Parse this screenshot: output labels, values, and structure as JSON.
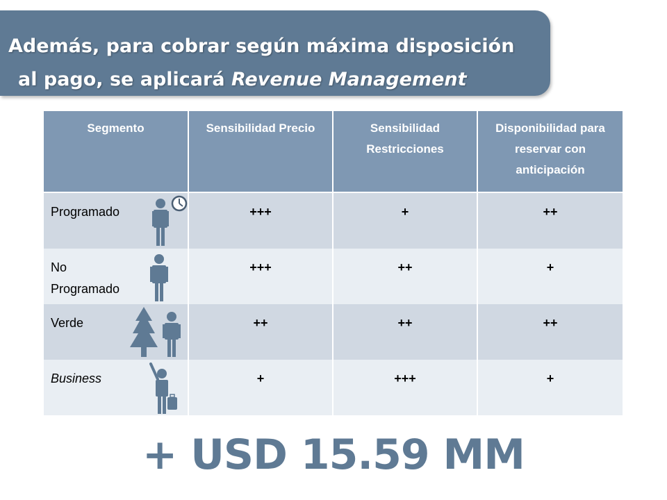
{
  "banner": {
    "line1": "Además, para cobrar según máxima disposición",
    "line2_prefix": "al pago, se aplicará ",
    "line2_emphasis": "Revenue Management"
  },
  "table": {
    "headers": [
      "Segmento",
      "Sensibilidad Precio",
      "Sensibilidad Restricciones",
      "Disponibilidad para reservar con anticipación"
    ],
    "rows": [
      {
        "segment": "Programado",
        "icon": "person-clock-icon",
        "precio": "+++",
        "restricciones": "+",
        "disponibilidad": "++"
      },
      {
        "segment": "No Programado",
        "icon": "person-icon",
        "precio": "+++",
        "restricciones": "++",
        "disponibilidad": "+"
      },
      {
        "segment": "Verde",
        "icon": "tree-person-icon",
        "precio": "++",
        "restricciones": "++",
        "disponibilidad": "++"
      },
      {
        "segment": "Business",
        "icon": "business-person-icon",
        "precio": "+",
        "restricciones": "+++",
        "disponibilidad": "+"
      }
    ]
  },
  "result": "+ USD 15.59 MM",
  "colors": {
    "banner": "#5f7a94",
    "header": "#7f98b3",
    "row_dark": "#d0d8e2",
    "row_light": "#e9eef3",
    "icon": "#5f7a94"
  }
}
